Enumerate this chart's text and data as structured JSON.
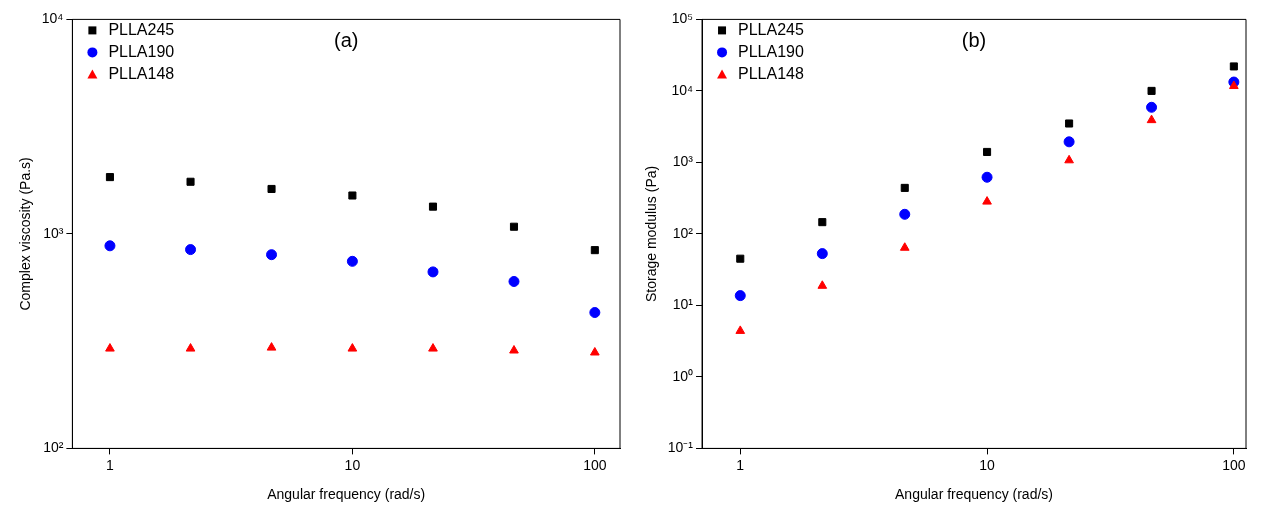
{
  "chart_data": [
    {
      "type": "scatter",
      "xlabel": "Angular frequency (rad/s)",
      "ylabel": "Complex viscosity (Pa.s)",
      "annotations": [
        "(a)"
      ],
      "log": "xy",
      "grid": false,
      "legend": "top left",
      "x": [
        1,
        2.15,
        4.64,
        10,
        21.5,
        46.4,
        100
      ],
      "xlim": [
        0.72,
        127
      ],
      "xticks": [
        1,
        10,
        100
      ],
      "ylim": [
        100,
        10000
      ],
      "yticks": [
        {
          "value": 100,
          "label": "10²"
        },
        {
          "value": 1000,
          "label": "10³"
        },
        {
          "value": 10000,
          "label": "10⁴"
        }
      ],
      "series": [
        {
          "name": "PLLA245",
          "color": "#000000",
          "marker": "square",
          "values": [
            1840,
            1750,
            1620,
            1510,
            1340,
            1080,
            840
          ]
        },
        {
          "name": "PLLA190",
          "color": "#0000ff",
          "marker": "circle",
          "values": [
            880,
            845,
            800,
            745,
            665,
            600,
            430
          ]
        },
        {
          "name": "PLLA148",
          "color": "#ff0000",
          "marker": "triangle",
          "values": [
            292,
            292,
            295,
            292,
            292,
            286,
            280
          ]
        }
      ]
    },
    {
      "type": "scatter",
      "xlabel": "Angular frequency (rad/s)",
      "ylabel": "Storage modulus (Pa)",
      "annotations": [
        "(b)"
      ],
      "log": "xy",
      "grid": false,
      "legend": "top left",
      "x": [
        1,
        2.15,
        4.64,
        10,
        21.5,
        46.4,
        100
      ],
      "xlim": [
        0.7,
        112
      ],
      "xticks": [
        1,
        10,
        100
      ],
      "ylim": [
        0.1,
        100000
      ],
      "yticks": [
        {
          "value": 0.1,
          "label": "10⁻¹"
        },
        {
          "value": 1,
          "label": "10⁰"
        },
        {
          "value": 10,
          "label": "10¹"
        },
        {
          "value": 100,
          "label": "10²"
        },
        {
          "value": 1000,
          "label": "10³"
        },
        {
          "value": 10000,
          "label": "10⁴"
        },
        {
          "value": 100000,
          "label": "10⁵"
        }
      ],
      "series": [
        {
          "name": "PLLA245",
          "color": "#000000",
          "marker": "square",
          "values": [
            45,
            146,
            440,
            1400,
            3500,
            10000,
            22000
          ]
        },
        {
          "name": "PLLA190",
          "color": "#0000ff",
          "marker": "circle",
          "values": [
            13.7,
            53,
            188,
            620,
            1940,
            5900,
            13300
          ]
        },
        {
          "name": "PLLA148",
          "color": "#ff0000",
          "marker": "triangle",
          "values": [
            4.4,
            18.8,
            64,
            283,
            1070,
            3900,
            11700
          ]
        }
      ]
    }
  ]
}
